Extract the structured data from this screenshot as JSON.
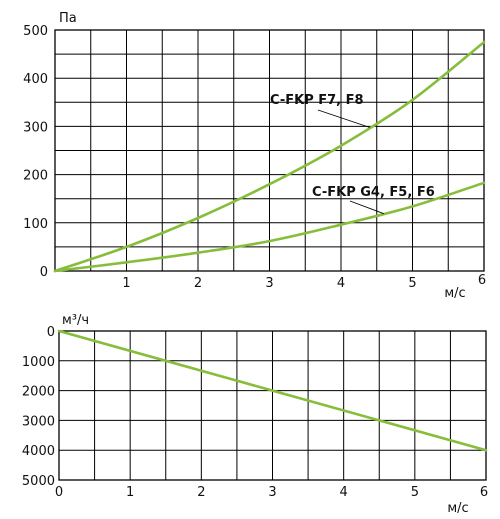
{
  "colors": {
    "curve": "#86bd3a"
  },
  "chart_data": [
    {
      "type": "line",
      "xlim": [
        0,
        6
      ],
      "ylim": [
        0,
        500
      ],
      "x_ticks": [
        "1",
        "2",
        "3",
        "4",
        "5",
        "6"
      ],
      "y_ticks": [
        "0",
        "100",
        "200",
        "300",
        "400",
        "500"
      ],
      "x_unit": "м/с",
      "y_unit": "Па",
      "grid": true,
      "series": [
        {
          "name": "C-FKP F7, F8",
          "x": [
            0,
            1,
            2,
            3,
            4,
            5,
            6
          ],
          "y": [
            0,
            50,
            110,
            180,
            260,
            355,
            475
          ]
        },
        {
          "name": "C-FKP G4, F5, F6",
          "x": [
            0,
            1,
            2,
            3,
            4,
            5,
            6
          ],
          "y": [
            0,
            18,
            38,
            62,
            96,
            134,
            183
          ]
        }
      ]
    },
    {
      "type": "line",
      "xlim": [
        0,
        6
      ],
      "ylim": [
        5000,
        0
      ],
      "x_ticks": [
        "0",
        "1",
        "2",
        "3",
        "4",
        "5",
        "6"
      ],
      "y_ticks": [
        "0",
        "1000",
        "2000",
        "3000",
        "4000",
        "5000"
      ],
      "x_unit": "м/с",
      "y_unit": "м³/ч",
      "grid": true,
      "series": [
        {
          "x": [
            0,
            6
          ],
          "y": [
            0,
            4000
          ]
        }
      ]
    }
  ]
}
